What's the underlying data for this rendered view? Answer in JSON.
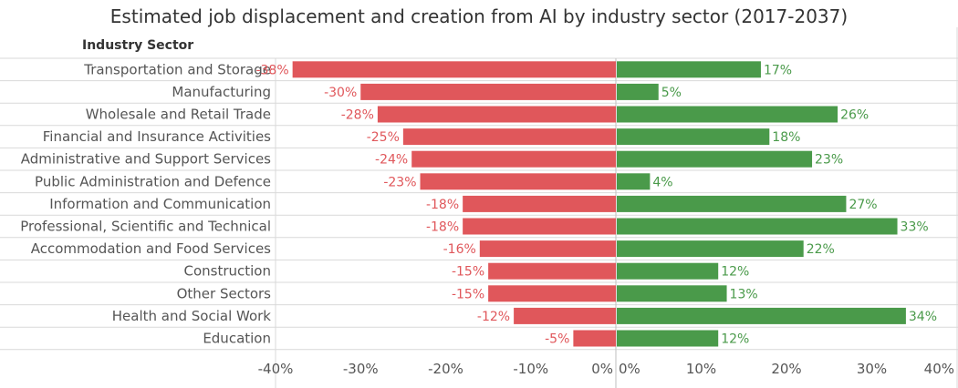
{
  "title": "Estimated job displacement and creation from AI by industry sector (2017-2037)",
  "row_header": "Industry Sector",
  "colors": {
    "displacement": "#e0575b",
    "creation": "#4a9a4a",
    "grid": "#d9d9d9",
    "text": "#555555"
  },
  "chart_data": {
    "type": "bar",
    "orientation": "horizontal",
    "categories": [
      "Transportation and Storage",
      "Manufacturing",
      "Wholesale and Retail Trade",
      "Financial and Insurance Activities",
      "Administrative and Support Services",
      "Public Administration and Defence",
      "Information and Communication",
      "Professional, Scientific and Technical",
      "Accommodation and Food Services",
      "Construction",
      "Other Sectors",
      "Health and Social Work",
      "Education"
    ],
    "series": [
      {
        "values": [
          -38,
          -30,
          -28,
          -25,
          -24,
          -23,
          -18,
          -18,
          -16,
          -15,
          -15,
          -12,
          -5
        ],
        "labels": [
          "-38%",
          "-30%",
          "-28%",
          "-25%",
          "-24%",
          "-23%",
          "-18%",
          "-18%",
          "-16%",
          "-15%",
          "-15%",
          "-12%",
          "-5%"
        ]
      },
      {
        "values": [
          17,
          5,
          26,
          18,
          23,
          4,
          27,
          33,
          22,
          12,
          13,
          34,
          12
        ],
        "labels": [
          "17%",
          "5%",
          "26%",
          "18%",
          "23%",
          "4%",
          "27%",
          "33%",
          "22%",
          "12%",
          "13%",
          "34%",
          "12%"
        ]
      }
    ],
    "left_axis": {
      "range": [
        -40,
        0
      ],
      "ticks": [
        "-40%",
        "-30%",
        "-20%",
        "-10%",
        "0%"
      ]
    },
    "right_axis": {
      "range": [
        0,
        40
      ],
      "ticks": [
        "0%",
        "10%",
        "20%",
        "30%",
        "40%"
      ]
    }
  }
}
